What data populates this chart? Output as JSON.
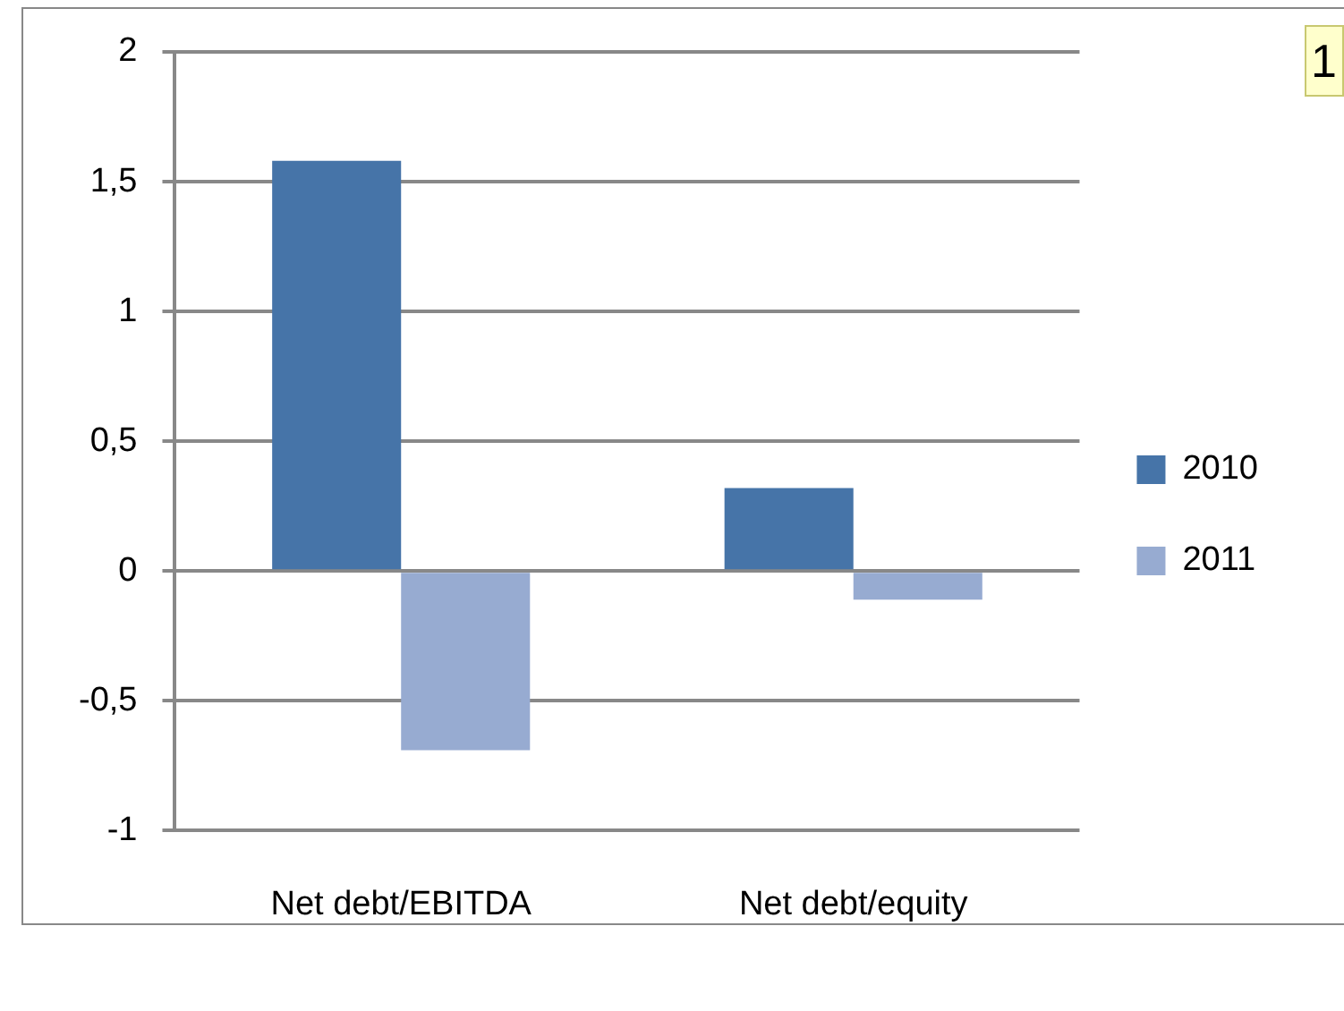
{
  "chart_data": {
    "type": "bar",
    "categories": [
      "Net debt/EBITDA",
      "Net debt/equity"
    ],
    "series": [
      {
        "name": "2010",
        "color": "#4674a8",
        "values": [
          1.58,
          0.32
        ]
      },
      {
        "name": "2011",
        "color": "#97abd1",
        "values": [
          -0.69,
          -0.11
        ]
      }
    ],
    "ylim": [
      -1,
      2
    ],
    "yticks": [
      {
        "value": -1,
        "label": "-1"
      },
      {
        "value": -0.5,
        "label": "-0,5"
      },
      {
        "value": 0,
        "label": "0"
      },
      {
        "value": 0.5,
        "label": "0,5"
      },
      {
        "value": 1,
        "label": "1"
      },
      {
        "value": 1.5,
        "label": "1,5"
      },
      {
        "value": 2,
        "label": "2"
      }
    ],
    "grid": "y",
    "legend": "right",
    "annotations": [
      "1"
    ]
  }
}
